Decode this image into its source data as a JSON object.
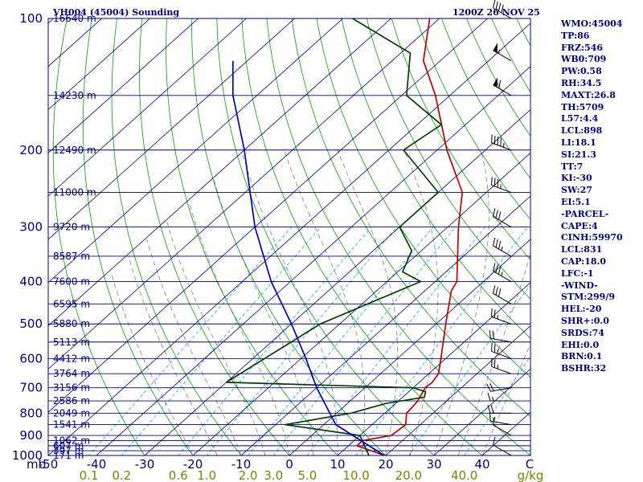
{
  "header": {
    "station_title": "VH004 (45004) Sounding",
    "time_title": "1200Z 26 NOV 25"
  },
  "indices": [
    "WMO:45004",
    "TP:86",
    "FRZ:546",
    "WB0:709",
    "PW:0.58",
    "RH:34.5",
    "MAXT:26.8",
    "TH:5709",
    "L57:4.4",
    "LCL:898",
    "LI:18.1",
    "SI:21.3",
    "TT:7",
    "KI:-30",
    "SW:27",
    "EI:5.1",
    "-PARCEL-",
    "CAPE:4",
    "CINH:59970",
    "LCL:831",
    "CAP:18.0",
    "LFC:-1",
    "-WIND-",
    "STM:299/9",
    "HEL:-20",
    "SHR+:0.0",
    "SRDS:74",
    "EHI:0.0",
    "BRN:0.1",
    "BSHR:32"
  ],
  "colors": {
    "background": "#ffffff",
    "frame": "#000080",
    "isobar": "#000080",
    "isotherm": "#000080",
    "dry_adiabat": "#00a000",
    "moist_adiabat": "#808080",
    "mixing_ratio": "#00a0ff",
    "temperature": "#c00000",
    "dewpoint": "#004000",
    "parcel": "#0000c0",
    "axis_text": "#000080",
    "mixing_text": "#808000",
    "wind": "#000000"
  },
  "chart_data": {
    "type": "skew-t log-p",
    "x_axis": {
      "label": "",
      "unit_label": "C",
      "range": [
        -50,
        50
      ],
      "ticks": [
        -50,
        -40,
        -30,
        -20,
        -10,
        0,
        10,
        20,
        30,
        40
      ],
      "tick_labels": [
        "-50",
        "-40",
        "-30",
        "-20",
        "-10",
        "0",
        "10",
        "20",
        "30",
        "40"
      ]
    },
    "y_axis": {
      "unit_label": "mb",
      "scale": "log",
      "range": [
        1000,
        100
      ],
      "ticks": [
        1000,
        900,
        800,
        700,
        600,
        500,
        400,
        300,
        200,
        100
      ],
      "tick_labels": [
        "1000",
        "900",
        "800",
        "700",
        "600",
        "500",
        "400",
        "300",
        "200",
        "100"
      ]
    },
    "mixing_ratio_axis": {
      "unit_label": "g/kg",
      "ticks": [
        0.1,
        0.2,
        0.6,
        1.0,
        2.0,
        3.0,
        5.0,
        10.0,
        20.0,
        40.0
      ],
      "tick_labels": [
        "0.1",
        "0.2",
        "0.6",
        "1.0",
        "2.0",
        "3.0",
        "5.0",
        "10.0",
        "20.0",
        "40.0"
      ]
    },
    "height_levels": [
      {
        "p": 1000,
        "label": "171 m"
      },
      {
        "p": 975,
        "label": "397 m"
      },
      {
        "p": 950,
        "label": "607 m"
      },
      {
        "p": 925,
        "label": "1062 m"
      },
      {
        "p": 850,
        "label": "1541 m"
      },
      {
        "p": 800,
        "label": "2049 m"
      },
      {
        "p": 750,
        "label": "2586 m"
      },
      {
        "p": 700,
        "label": "3156 m"
      },
      {
        "p": 650,
        "label": "3764 m"
      },
      {
        "p": 600,
        "label": "4412 m"
      },
      {
        "p": 550,
        "label": "5113 m"
      },
      {
        "p": 500,
        "label": "5880 m"
      },
      {
        "p": 450,
        "label": "6595 m"
      },
      {
        "p": 400,
        "label": "7600 m"
      },
      {
        "p": 350,
        "label": "8587 m"
      },
      {
        "p": 300,
        "label": "9720 m"
      },
      {
        "p": 250,
        "label": "11000 m"
      },
      {
        "p": 200,
        "label": "12490 m"
      },
      {
        "p": 150,
        "label": "14230 m"
      },
      {
        "p": 100,
        "label": "16640 m"
      }
    ],
    "series": [
      {
        "role": "temperature",
        "points": [
          {
            "p": 1000,
            "t": 19.8
          },
          {
            "p": 950,
            "t": 11.8
          },
          {
            "p": 925,
            "t": 11.7
          },
          {
            "p": 900,
            "t": 16.5
          },
          {
            "p": 850,
            "t": 17.0
          },
          {
            "p": 800,
            "t": 14.5
          },
          {
            "p": 775,
            "t": 14.3
          },
          {
            "p": 750,
            "t": 14.0
          },
          {
            "p": 700,
            "t": 12.5
          },
          {
            "p": 680,
            "t": 12.7
          },
          {
            "p": 650,
            "t": 12.0
          },
          {
            "p": 600,
            "t": 9.0
          },
          {
            "p": 500,
            "t": 2.0
          },
          {
            "p": 420,
            "t": -4.5
          },
          {
            "p": 400,
            "t": -5.5
          },
          {
            "p": 300,
            "t": -17.8
          },
          {
            "p": 250,
            "t": -25.0
          },
          {
            "p": 200,
            "t": -38.0
          },
          {
            "p": 150,
            "t": -53.0
          },
          {
            "p": 125,
            "t": -63.5
          },
          {
            "p": 100,
            "t": -72.0
          }
        ]
      },
      {
        "role": "dewpoint",
        "points": [
          {
            "p": 1000,
            "t": 16.5
          },
          {
            "p": 900,
            "t": 10.0
          },
          {
            "p": 850,
            "t": -8.0
          },
          {
            "p": 800,
            "t": 3.0
          },
          {
            "p": 760,
            "t": 8.0
          },
          {
            "p": 735,
            "t": 14.5
          },
          {
            "p": 715,
            "t": 13.5
          },
          {
            "p": 700,
            "t": 10.0
          },
          {
            "p": 680,
            "t": -30.0
          },
          {
            "p": 500,
            "t": -24.0
          },
          {
            "p": 400,
            "t": -13.0
          },
          {
            "p": 380,
            "t": -19.0
          },
          {
            "p": 340,
            "t": -22.0
          },
          {
            "p": 300,
            "t": -30.0
          },
          {
            "p": 250,
            "t": -30.0
          },
          {
            "p": 225,
            "t": -38.0
          },
          {
            "p": 200,
            "t": -47.0
          },
          {
            "p": 175,
            "t": -45.0
          },
          {
            "p": 150,
            "t": -59.0
          },
          {
            "p": 120,
            "t": -68.0
          },
          {
            "p": 100,
            "t": -88.0
          }
        ]
      },
      {
        "role": "parcel",
        "points": [
          {
            "p": 1000,
            "t": 19.7
          },
          {
            "p": 850,
            "t": 2.5
          },
          {
            "p": 700,
            "t": -10.0
          },
          {
            "p": 600,
            "t": -19.0
          },
          {
            "p": 500,
            "t": -30.0
          },
          {
            "p": 400,
            "t": -44.0
          },
          {
            "p": 300,
            "t": -60.0
          },
          {
            "p": 250,
            "t": -69.0
          },
          {
            "p": 200,
            "t": -80.0
          },
          {
            "p": 150,
            "t": -95.0
          },
          {
            "p": 125,
            "t": -103.0
          }
        ]
      }
    ],
    "wind_barbs": [
      {
        "p": 1000,
        "dir": 300,
        "spd": 10
      },
      {
        "p": 900,
        "dir": 300,
        "spd": 10
      },
      {
        "p": 850,
        "dir": 280,
        "spd": 15
      },
      {
        "p": 800,
        "dir": 270,
        "spd": 20
      },
      {
        "p": 750,
        "dir": 270,
        "spd": 15
      },
      {
        "p": 700,
        "dir": 260,
        "spd": 20
      },
      {
        "p": 650,
        "dir": 290,
        "spd": 25
      },
      {
        "p": 600,
        "dir": 290,
        "spd": 25
      },
      {
        "p": 550,
        "dir": 280,
        "spd": 20
      },
      {
        "p": 500,
        "dir": 290,
        "spd": 25
      },
      {
        "p": 450,
        "dir": 300,
        "spd": 30
      },
      {
        "p": 400,
        "dir": 300,
        "spd": 35
      },
      {
        "p": 350,
        "dir": 300,
        "spd": 35
      },
      {
        "p": 300,
        "dir": 300,
        "spd": 30
      },
      {
        "p": 250,
        "dir": 290,
        "spd": 35
      },
      {
        "p": 200,
        "dir": 290,
        "spd": 45
      },
      {
        "p": 150,
        "dir": 300,
        "spd": 60
      },
      {
        "p": 125,
        "dir": 300,
        "spd": 55
      },
      {
        "p": 100,
        "dir": 300,
        "spd": 40
      }
    ]
  }
}
